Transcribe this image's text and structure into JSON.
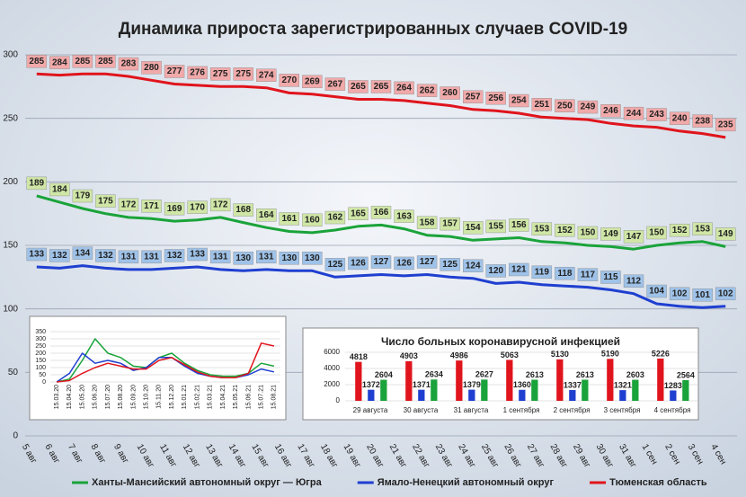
{
  "chart_data": [
    {
      "type": "line",
      "title": "Динамика прироста зарегистрированных случаев COVID-19",
      "categories": [
        "5 авг",
        "6 авг",
        "7 авг",
        "8 авг",
        "9 авг",
        "10 авг",
        "11 авг",
        "12 авг",
        "13 авг",
        "14 авг",
        "15 авг",
        "16 авг",
        "17 авг",
        "18 авг",
        "19 авг",
        "20 авг",
        "21 авг",
        "22 авг",
        "23 авг",
        "24 авг",
        "25 авг",
        "26 авг",
        "27 авг",
        "28 авг",
        "29 авг",
        "30 авг",
        "31 авг",
        "1 сен",
        "2 сен",
        "3 сен",
        "4 сен"
      ],
      "series": [
        {
          "name": "Ханты-Мансийский автономный округ — Югра",
          "color": "#1aa33a",
          "label_color": "#cfe6a6",
          "values": [
            189,
            184,
            179,
            175,
            172,
            171,
            169,
            170,
            172,
            168,
            164,
            161,
            160,
            162,
            165,
            166,
            163,
            158,
            157,
            154,
            155,
            156,
            153,
            152,
            150,
            149,
            147,
            150,
            152,
            153,
            149
          ]
        },
        {
          "name": "Ямало-Ненецкий автономный округ",
          "color": "#1f3fd0",
          "label_color": "#9fc2e8",
          "values": [
            133,
            132,
            134,
            132,
            131,
            131,
            132,
            133,
            131,
            130,
            131,
            130,
            130,
            125,
            126,
            127,
            126,
            127,
            125,
            124,
            120,
            121,
            119,
            118,
            117,
            115,
            112,
            104,
            102,
            101,
            102
          ]
        },
        {
          "name": "Тюменская область",
          "color": "#e0141c",
          "label_color": "#f1a9a9",
          "values": [
            285,
            284,
            285,
            285,
            283,
            280,
            277,
            276,
            275,
            275,
            274,
            270,
            269,
            267,
            265,
            265,
            264,
            262,
            260,
            257,
            256,
            254,
            251,
            250,
            249,
            246,
            244,
            243,
            240,
            238,
            235
          ]
        }
      ],
      "ylim": [
        0,
        300
      ],
      "yticks": [
        0,
        50,
        100,
        150,
        200,
        250,
        300
      ],
      "grid": true,
      "legend": "bottom"
    },
    {
      "type": "line",
      "categories": [
        "15.03.20",
        "15.04.20",
        "15.05.20",
        "15.06.20",
        "15.07.20",
        "15.08.20",
        "15.09.20",
        "15.10.20",
        "15.11.20",
        "15.12.20",
        "15.01.21",
        "15.02.21",
        "15.03.21",
        "15.04.21",
        "15.05.21",
        "15.06.21",
        "15.07.21",
        "15.08.21"
      ],
      "series": [
        {
          "color": "#1aa33a",
          "values": [
            0,
            20,
            150,
            300,
            200,
            170,
            110,
            100,
            170,
            200,
            130,
            80,
            50,
            40,
            40,
            60,
            130,
            110
          ]
        },
        {
          "color": "#1f3fd0",
          "values": [
            0,
            60,
            200,
            130,
            150,
            130,
            80,
            100,
            170,
            170,
            110,
            60,
            40,
            30,
            30,
            50,
            90,
            70
          ]
        },
        {
          "color": "#e0141c",
          "values": [
            0,
            10,
            60,
            100,
            130,
            110,
            90,
            90,
            150,
            170,
            120,
            70,
            40,
            30,
            30,
            60,
            270,
            250
          ]
        }
      ],
      "ylim": [
        0,
        350
      ],
      "yticks": [
        0,
        50,
        100,
        150,
        200,
        250,
        300,
        350
      ],
      "grid": true
    },
    {
      "type": "bar",
      "title": "Число больных коронавирусной  инфекцией",
      "categories": [
        "29 августа",
        "30 августа",
        "31 августа",
        "1 сентября",
        "2 сентября",
        "3 сентября",
        "4 сентября"
      ],
      "series": [
        {
          "color": "#e0141c",
          "values": [
            4818,
            4903,
            4986,
            5063,
            5130,
            5190,
            5226
          ]
        },
        {
          "color": "#1f3fd0",
          "values": [
            1372,
            1371,
            1379,
            1360,
            1337,
            1321,
            1283
          ]
        },
        {
          "color": "#1aa33a",
          "values": [
            2604,
            2634,
            2627,
            2613,
            2613,
            2603,
            2564
          ]
        }
      ],
      "ylim": [
        0,
        6000
      ],
      "yticks": [
        0,
        2000,
        4000,
        6000
      ],
      "grid": true
    }
  ]
}
